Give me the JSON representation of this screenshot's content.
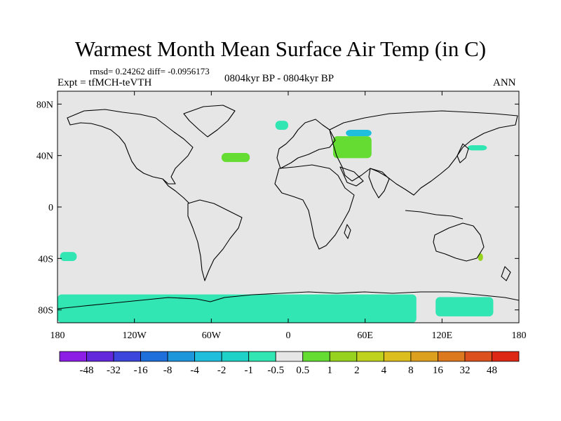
{
  "header": {
    "title": "Warmest Month Mean Surface Air Temp (in C)",
    "stats": "rmsd= 0.24262 diff= -0.0956173",
    "expt": "Expt = tfMCH-teVTH",
    "period": "0804kyr BP - 0804kyr BP",
    "season": "ANN"
  },
  "colors": {
    "background_land_ocean": "#e6e6e6",
    "coastline": "#000000",
    "neg_small": "#32e6b4",
    "pos_small": "#64dc32",
    "neg_med": "#1ebedc"
  },
  "chart_data": {
    "type": "heatmap",
    "title": "Warmest Month Mean Surface Air Temp (in C)",
    "projection": "cylindrical equidistant world map with coastlines",
    "xlim": [
      -180,
      180
    ],
    "ylim": [
      -90,
      90
    ],
    "x_ticks": [
      "180",
      "120W",
      "60W",
      "0",
      "60E",
      "120E",
      "180"
    ],
    "x_tick_values": [
      -180,
      -120,
      -60,
      0,
      60,
      120,
      180
    ],
    "y_ticks": [
      "80N",
      "40N",
      "0",
      "40S",
      "80S"
    ],
    "y_tick_values": [
      80,
      40,
      0,
      -40,
      -80
    ],
    "colorbar": {
      "labels": [
        "-48",
        "-32",
        "-16",
        "-8",
        "-4",
        "-2",
        "-1",
        "-0.5",
        "0.5",
        "1",
        "2",
        "4",
        "8",
        "16",
        "32",
        "48"
      ],
      "colors": [
        "#8c1ee6",
        "#6428dc",
        "#3c46dc",
        "#1e6edc",
        "#1e96dc",
        "#1ebedc",
        "#1ed2c8",
        "#32e6b4",
        "#e6e6e6",
        "#64dc32",
        "#96d21e",
        "#bed21e",
        "#dcbe1e",
        "#dca01e",
        "#dc781e",
        "#dc501e",
        "#dc2814"
      ]
    },
    "anomaly_regions": [
      {
        "region": "Southern Ocean / Antarctic margin",
        "lon": [
          -180,
          100
        ],
        "lat": [
          -90,
          -68
        ],
        "class": "-1 to -0.5"
      },
      {
        "region": "Southern Ocean south of Australia",
        "lon": [
          115,
          160
        ],
        "lat": [
          -85,
          -70
        ],
        "class": "-1 to -0.5"
      },
      {
        "region": "South Pacific",
        "lon": [
          -178,
          -165
        ],
        "lat": [
          -42,
          -35
        ],
        "class": "-1 to -0.5"
      },
      {
        "region": "North Atlantic",
        "lon": [
          -52,
          -30
        ],
        "lat": [
          35,
          42
        ],
        "class": "0.5 to 1"
      },
      {
        "region": "Central Asia",
        "lon": [
          35,
          65
        ],
        "lat": [
          38,
          55
        ],
        "class": "0.5 to 1"
      },
      {
        "region": "Northern Europe",
        "lon": [
          -10,
          0
        ],
        "lat": [
          60,
          67
        ],
        "class": "-1 to -0.5"
      },
      {
        "region": "Western Siberia",
        "lon": [
          45,
          65
        ],
        "lat": [
          55,
          60
        ],
        "class": "-2 to -1"
      },
      {
        "region": "North Pacific",
        "lon": [
          140,
          155
        ],
        "lat": [
          44,
          48
        ],
        "class": "-1 to -0.5"
      },
      {
        "region": "Eastern Australia",
        "lon": [
          148,
          152
        ],
        "lat": [
          -42,
          -36
        ],
        "class": "1 to 2"
      }
    ]
  }
}
